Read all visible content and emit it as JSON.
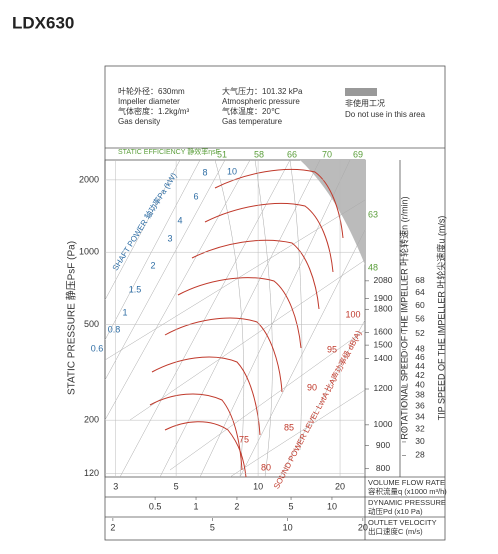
{
  "chart_data": {
    "type": "line",
    "title": "LDX630",
    "notes": {
      "diameter": "叶轮外径：630mm",
      "diameter_en": "Impeller diameter",
      "density": "气体密度：1.2kg/m³",
      "density_en": "Gas density",
      "pressure": "大气压力：101.32 kPa",
      "pressure_en": "Atmospheric pressure",
      "temperature": "气体温度：20℃",
      "temperature_en": "Gas temperature",
      "restricted": "非使用工况",
      "restricted_en": "Do not use in this area"
    },
    "efficiency_label": "STATIC EFFICIENCY 静效率ηsF",
    "power_label": "SHAFT POWER 轴功率Pa (kW)",
    "sound_label": "SOUND POWER LEVEL LwtA 比A声功率级 dB(A)",
    "ylabel": "STATIC PRESSURE 静压PsF (Pa)",
    "ylog": true,
    "ylim": [
      116,
      2420
    ],
    "yticks": [
      120,
      200,
      500,
      1000,
      2000
    ],
    "xlabel": "VOLUME FLOW RATE",
    "xlabel_cn": "容积流量q (x1000 m³/h)",
    "xlog": true,
    "xlim": [
      2.74,
      24.7
    ],
    "xticks": [
      3,
      5,
      10,
      20
    ],
    "grid": true,
    "dynamic_pressure": {
      "label": "DYNAMIC PRESSURE",
      "label_cn": "动压Pd (x10 Pa)",
      "lim": [
        0.214,
        17.5
      ],
      "ticks": [
        0.5,
        1,
        2,
        5,
        10
      ]
    },
    "outlet_velocity": {
      "label": "OUTLET VELOCITY",
      "label_cn": "出口速度C (m/s)",
      "lim": [
        1.86,
        20.4
      ],
      "ticks": [
        2,
        5,
        10,
        20
      ]
    },
    "rotational_speed": {
      "label": "ROTATIONAL SPEED OF THE IMPELLER 叶轮转速n (r/min)",
      "lim": [
        767,
        3846
      ],
      "ticks": [
        800,
        900,
        1000,
        1200,
        1400,
        1500,
        1600,
        1800,
        1900,
        2080
      ]
    },
    "tip_speed": {
      "label": "TIP SPEED OF THE IMPELLER 叶轮尖速度u (m/s)",
      "lim": [
        25.1,
        125.8
      ],
      "ticks": [
        28,
        30,
        32,
        34,
        36,
        38,
        40,
        42,
        44,
        46,
        48,
        52,
        56,
        60,
        64,
        68
      ]
    },
    "efficiency_values": [
      51,
      58,
      66,
      70,
      69,
      63,
      48
    ],
    "power_values": [
      10,
      8,
      6,
      4,
      3,
      2,
      1.5,
      1,
      0.8,
      0.6
    ],
    "sound_values": [
      100,
      95,
      90,
      85,
      80,
      75
    ]
  }
}
